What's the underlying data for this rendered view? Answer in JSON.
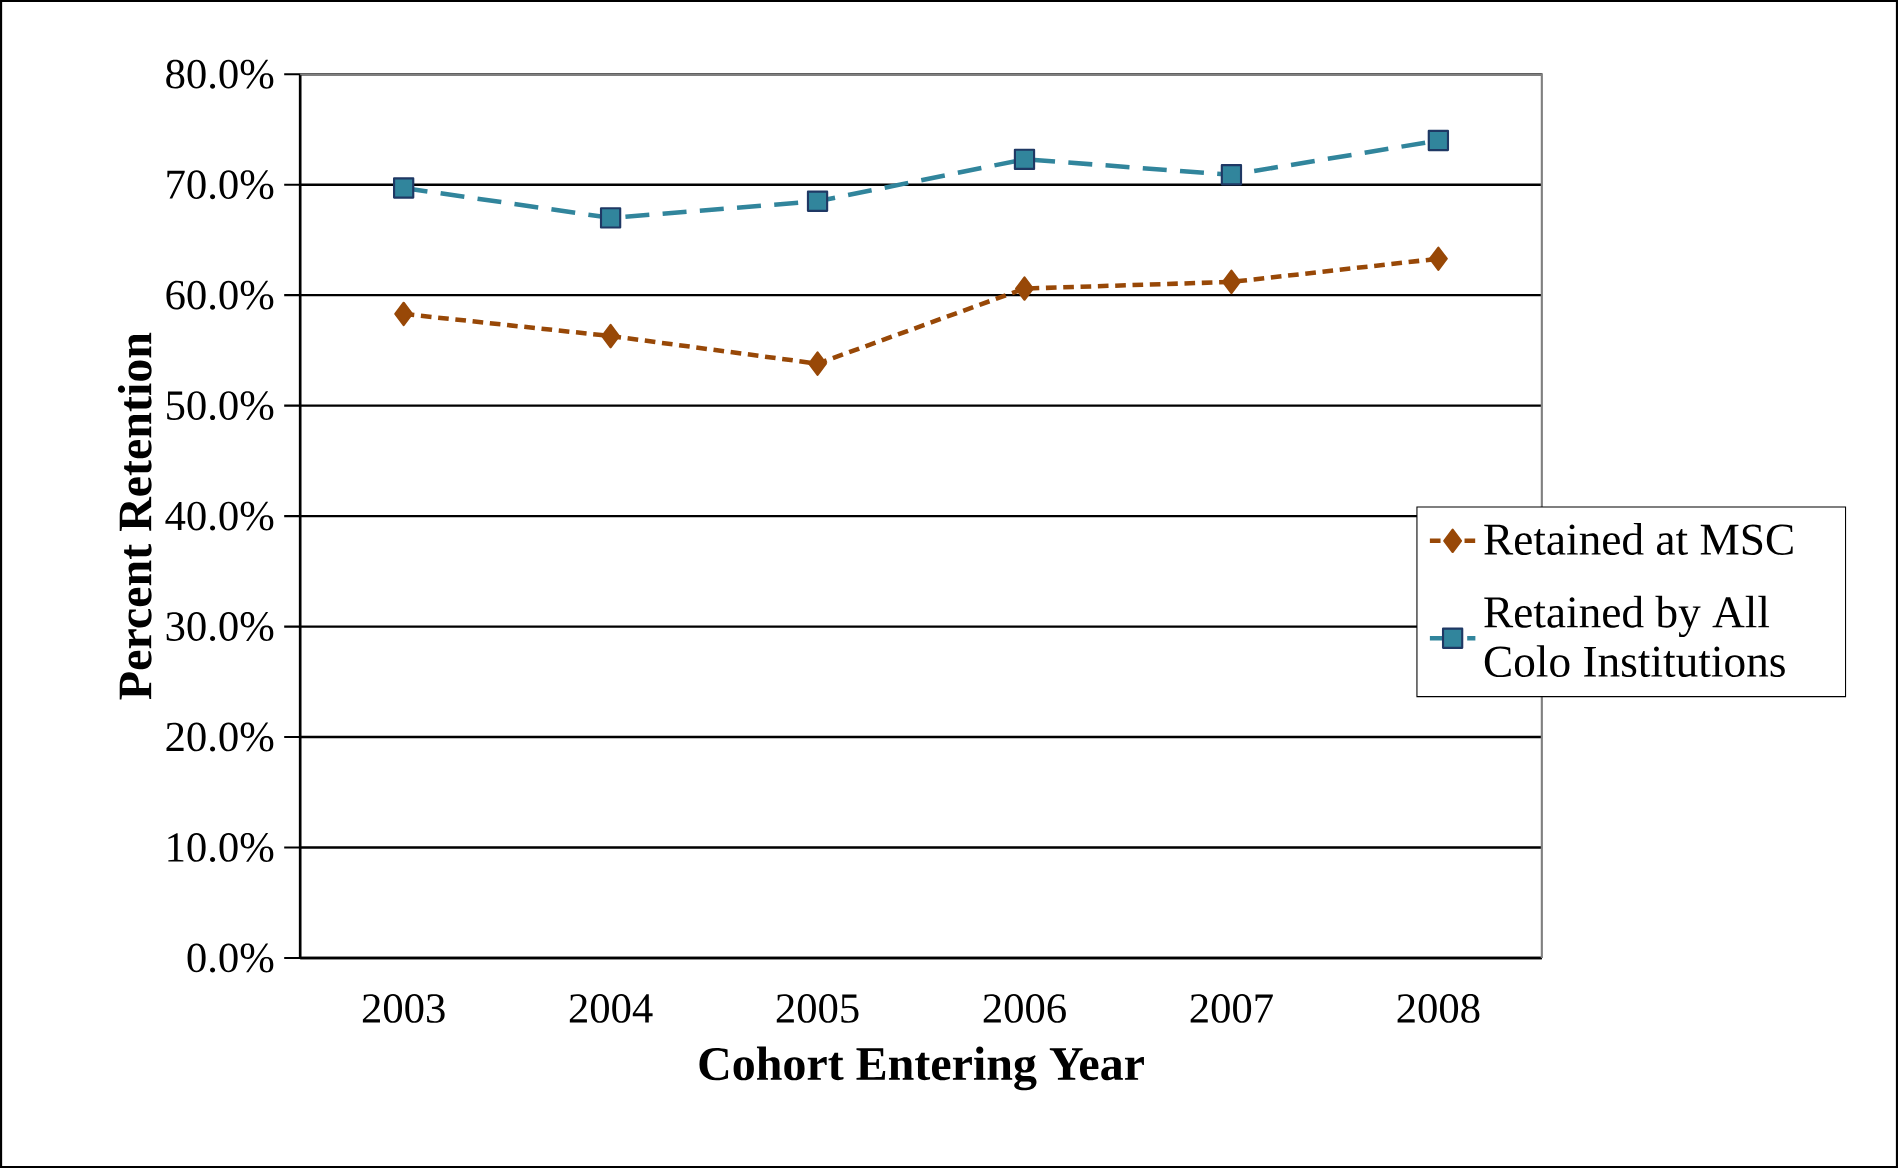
{
  "chart_data": {
    "type": "line",
    "xlabel": "Cohort Entering Year",
    "ylabel": "Percent Retention",
    "categories": [
      "2003",
      "2004",
      "2005",
      "2006",
      "2007",
      "2008"
    ],
    "series": [
      {
        "name": "Retained at MSC",
        "color": "#984807",
        "values": [
          58.3,
          56.3,
          53.8,
          60.6,
          61.2,
          63.3
        ],
        "marker": "diamond",
        "line_style": "dotted"
      },
      {
        "name": "Retained by All Colo Institutions",
        "color": "#31859c",
        "values": [
          69.7,
          67.0,
          68.5,
          72.3,
          70.9,
          74.0
        ],
        "marker": "square",
        "line_style": "dashed"
      }
    ],
    "ylim": [
      0,
      80
    ],
    "yticks": [
      {
        "value": 0,
        "label": "0.0%"
      },
      {
        "value": 10,
        "label": "10.0%"
      },
      {
        "value": 20,
        "label": "20.0%"
      },
      {
        "value": 30,
        "label": "30.0%"
      },
      {
        "value": 40,
        "label": "40.0%"
      },
      {
        "value": 50,
        "label": "50.0%"
      },
      {
        "value": 60,
        "label": "60.0%"
      },
      {
        "value": 70,
        "label": "70.0%"
      },
      {
        "value": 80,
        "label": "80.0%"
      }
    ],
    "grid": "y",
    "legend": "right"
  }
}
